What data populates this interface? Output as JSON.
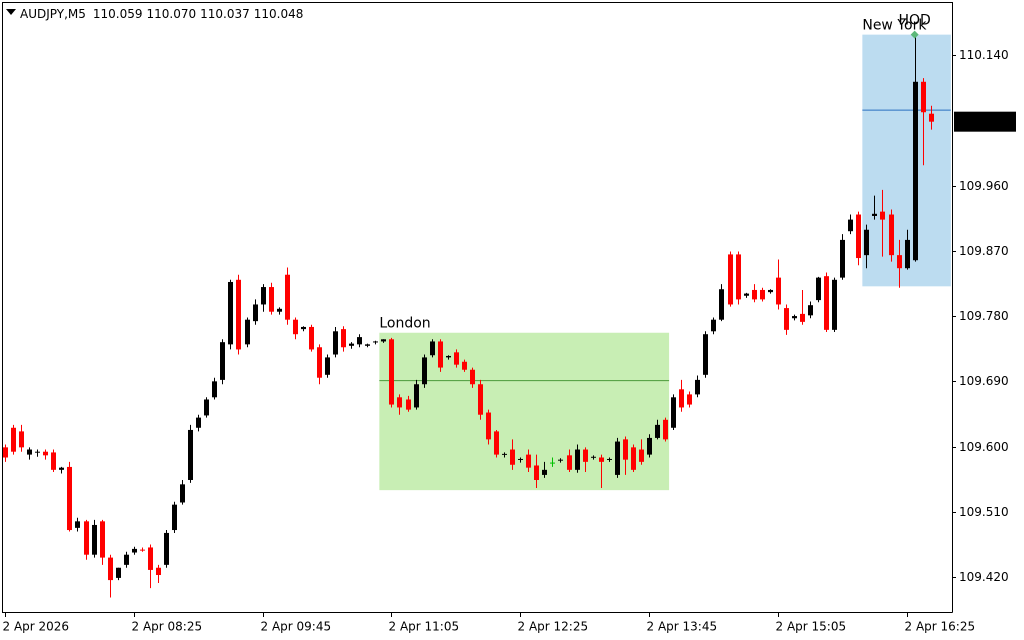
{
  "header": {
    "symbol": "AUDJPY,M5",
    "ohlc": [
      "110.059",
      "110.070",
      "110.037",
      "110.048"
    ]
  },
  "chart_data": {
    "type": "candlestick",
    "bull_color": "#000000",
    "bear_color": "#ff0000",
    "doji_color": "#00c000",
    "ylim": [
      109.372,
      110.213
    ],
    "yticks": [
      {
        "value": 110.14,
        "label": "110.140"
      },
      {
        "value": 109.96,
        "label": "109.960"
      },
      {
        "value": 109.87,
        "label": "109.870"
      },
      {
        "value": 109.78,
        "label": "109.780"
      },
      {
        "value": 109.69,
        "label": "109.690"
      },
      {
        "value": 109.6,
        "label": "109.600"
      },
      {
        "value": 109.51,
        "label": "109.510"
      },
      {
        "value": 109.42,
        "label": "109.420"
      }
    ],
    "xticks": [
      {
        "value": 0,
        "label": "2 Apr 2026"
      },
      {
        "value": 16,
        "label": "2 Apr 08:25"
      },
      {
        "value": 32,
        "label": "2 Apr 09:45"
      },
      {
        "value": 48,
        "label": "2 Apr 11:05"
      },
      {
        "value": 64,
        "label": "2 Apr 12:25"
      },
      {
        "value": 80,
        "label": "2 Apr 13:45"
      },
      {
        "value": 96,
        "label": "2 Apr 15:05"
      },
      {
        "value": 112,
        "label": "2 Apr 16:25"
      }
    ],
    "current_price": 110.048,
    "sessions": [
      {
        "name": "London",
        "start": 47,
        "end": 82,
        "high": 109.757,
        "low": 109.54,
        "level": 109.691,
        "color": "#c8eeb4",
        "line_color": "#4a9a3a"
      },
      {
        "name": "New York",
        "start": 107,
        "end": 117,
        "high": 110.168,
        "low": 109.821,
        "level": 110.064,
        "color": "#bcdcf0",
        "line_color": "#2a6fc0"
      }
    ],
    "hod": {
      "label": "HOD",
      "index": 113,
      "value": 110.168,
      "color": "#5cb87a"
    },
    "open": [
      109.599,
      109.626,
      109.621,
      109.589,
      109.592,
      109.593,
      109.592,
      109.568,
      109.572,
      109.488,
      109.497,
      109.451,
      109.497,
      109.447,
      109.419,
      109.437,
      109.454,
      109.458,
      109.461,
      109.433,
      109.437,
      109.485,
      109.523,
      109.554,
      109.626,
      109.643,
      109.668,
      109.692,
      109.741,
      109.83,
      109.741,
      109.773,
      109.796,
      109.82,
      109.786,
      109.837,
      109.775,
      109.762,
      109.765,
      109.737,
      109.699,
      109.727,
      109.762,
      109.739,
      109.741,
      109.739,
      109.744,
      109.745,
      109.748,
      109.668,
      109.665,
      109.654,
      109.686,
      109.726,
      109.745,
      109.723,
      109.73,
      109.717,
      109.706,
      109.686,
      109.647,
      109.621,
      109.589,
      109.596,
      109.582,
      109.589,
      109.574,
      109.561,
      109.578,
      109.581,
      109.588,
      109.568,
      109.596,
      109.585,
      109.585,
      109.582,
      109.561,
      109.61,
      109.599,
      109.596,
      109.589,
      109.612,
      109.637,
      109.626,
      109.679,
      109.672,
      109.672,
      109.699,
      109.759,
      109.775,
      109.865,
      109.865,
      109.808,
      109.816,
      109.816,
      109.813,
      109.833,
      109.791,
      109.777,
      109.783,
      109.781,
      109.802,
      109.835,
      109.761,
      109.833,
      109.897,
      109.92,
      109.864,
      109.918,
      109.924,
      109.92,
      109.864,
      109.846,
      109.857,
      110.103,
      110.059
    ],
    "high": [
      109.603,
      109.63,
      109.63,
      109.599,
      109.596,
      109.596,
      109.596,
      109.572,
      109.579,
      109.502,
      109.499,
      109.499,
      109.499,
      109.451,
      109.433,
      109.455,
      109.462,
      109.461,
      109.465,
      109.437,
      109.485,
      109.524,
      109.554,
      109.63,
      109.644,
      109.668,
      109.695,
      109.748,
      109.83,
      109.837,
      109.778,
      109.803,
      109.824,
      109.826,
      109.792,
      109.847,
      109.778,
      109.766,
      109.768,
      109.741,
      109.727,
      109.765,
      109.766,
      109.744,
      109.755,
      109.742,
      109.746,
      109.748,
      109.75,
      109.672,
      109.67,
      109.692,
      109.727,
      109.748,
      109.748,
      109.726,
      109.734,
      109.72,
      109.709,
      109.692,
      109.651,
      109.623,
      109.592,
      109.61,
      109.585,
      109.596,
      109.589,
      109.579,
      109.585,
      109.584,
      109.596,
      109.603,
      109.599,
      109.588,
      109.589,
      109.585,
      109.612,
      109.614,
      109.603,
      109.61,
      109.617,
      109.637,
      109.64,
      109.672,
      109.692,
      109.676,
      109.698,
      109.759,
      109.778,
      109.824,
      109.869,
      109.869,
      109.812,
      109.824,
      109.819,
      109.817,
      109.858,
      109.796,
      109.782,
      109.816,
      109.8,
      109.834,
      109.84,
      109.833,
      109.893,
      109.92,
      109.924,
      109.906,
      109.946,
      109.954,
      109.927,
      109.885,
      109.899,
      110.168,
      110.108,
      110.07
    ],
    "low": [
      109.579,
      109.589,
      109.593,
      109.582,
      109.586,
      109.582,
      109.565,
      109.563,
      109.483,
      109.483,
      109.444,
      109.447,
      109.437,
      109.392,
      109.416,
      109.433,
      109.451,
      109.455,
      109.405,
      109.412,
      109.433,
      109.481,
      109.52,
      109.55,
      109.621,
      109.64,
      109.665,
      109.686,
      109.734,
      109.727,
      109.737,
      109.768,
      109.786,
      109.782,
      109.782,
      109.768,
      109.748,
      109.759,
      109.731,
      109.686,
      109.695,
      109.723,
      109.731,
      109.735,
      109.737,
      109.737,
      109.741,
      109.743,
      109.654,
      109.644,
      109.648,
      109.651,
      109.681,
      109.723,
      109.703,
      109.72,
      109.709,
      109.703,
      109.681,
      109.637,
      109.603,
      109.585,
      109.585,
      109.568,
      109.578,
      109.565,
      109.543,
      109.557,
      109.572,
      109.578,
      109.565,
      109.564,
      109.565,
      109.582,
      109.543,
      109.579,
      109.557,
      109.561,
      109.565,
      109.575,
      109.585,
      109.61,
      109.607,
      109.623,
      109.648,
      109.654,
      109.668,
      109.695,
      109.755,
      109.773,
      109.793,
      109.796,
      109.805,
      109.799,
      109.8,
      109.811,
      109.789,
      109.754,
      109.774,
      109.768,
      109.777,
      109.799,
      109.758,
      109.758,
      109.83,
      109.893,
      109.85,
      109.846,
      109.913,
      109.862,
      109.855,
      109.819,
      109.844,
      109.855,
      109.988,
      110.037
    ],
    "close": [
      109.585,
      109.593,
      109.599,
      109.596,
      109.593,
      109.588,
      109.568,
      109.571,
      109.485,
      109.497,
      109.451,
      109.492,
      109.447,
      109.416,
      109.433,
      109.451,
      109.459,
      109.457,
      109.43,
      109.423,
      109.481,
      109.52,
      109.548,
      109.623,
      109.64,
      109.665,
      109.69,
      109.744,
      109.827,
      109.734,
      109.775,
      109.796,
      109.82,
      109.786,
      109.79,
      109.775,
      109.755,
      109.765,
      109.734,
      109.695,
      109.723,
      109.759,
      109.737,
      109.742,
      109.751,
      109.741,
      109.745,
      109.748,
      109.658,
      109.654,
      109.651,
      109.686,
      109.723,
      109.745,
      109.709,
      109.725,
      109.713,
      109.706,
      109.686,
      109.644,
      109.61,
      109.589,
      109.59,
      109.575,
      109.583,
      109.571,
      109.554,
      109.568,
      109.578,
      109.582,
      109.568,
      109.596,
      109.579,
      109.586,
      109.579,
      109.583,
      109.607,
      109.582,
      109.568,
      109.579,
      109.612,
      109.63,
      109.61,
      109.668,
      109.654,
      109.658,
      109.692,
      109.755,
      109.775,
      109.817,
      109.796,
      109.803,
      109.811,
      109.803,
      109.803,
      109.816,
      109.796,
      109.761,
      109.78,
      109.772,
      109.795,
      109.833,
      109.761,
      109.83,
      109.885,
      109.913,
      109.86,
      109.899,
      109.921,
      109.913,
      109.864,
      109.846,
      109.885,
      110.103,
      110.061,
      110.048
    ]
  }
}
